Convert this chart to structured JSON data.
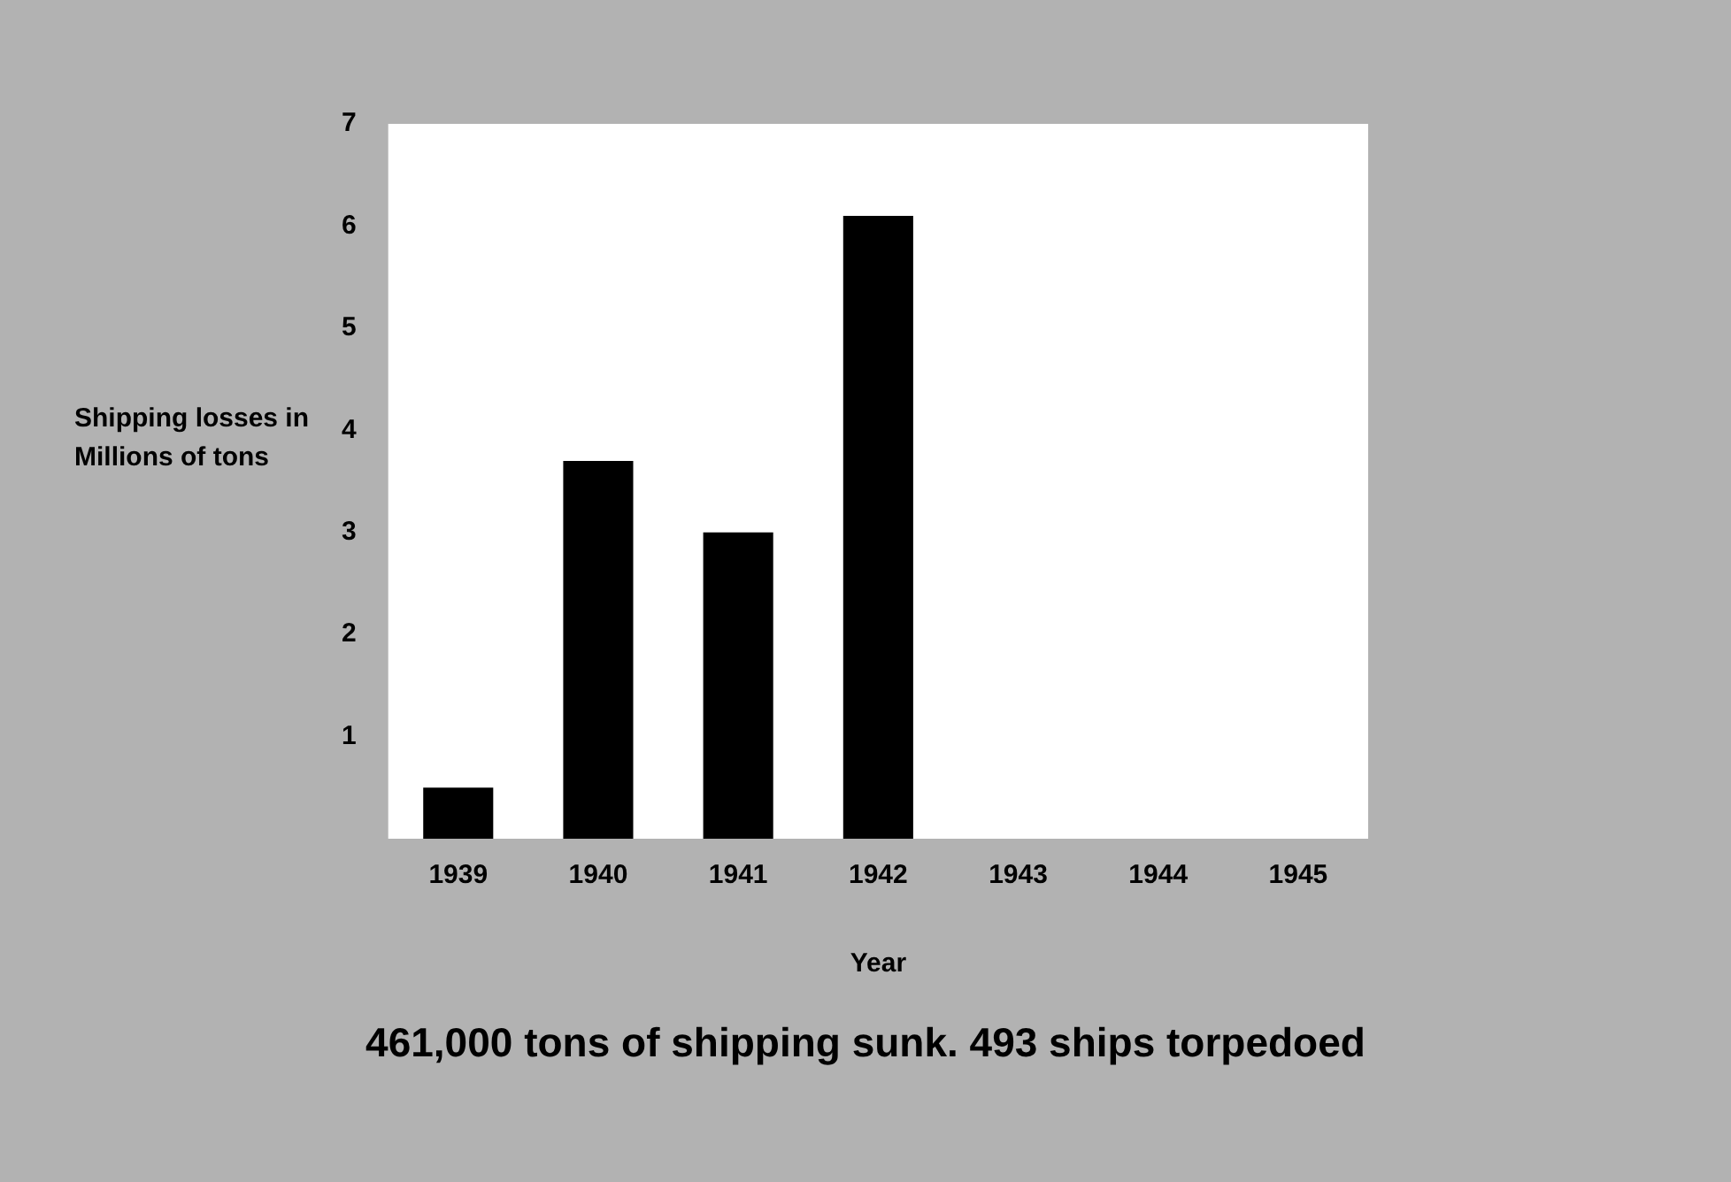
{
  "chart_data": {
    "type": "bar",
    "xlabel": "Year",
    "ylabel": "Shipping losses in Millions of tons",
    "categories": [
      "1939",
      "1940",
      "1941",
      "1942",
      "1943",
      "1944",
      "1945"
    ],
    "values": [
      0.5,
      3.7,
      3.0,
      6.1,
      null,
      null,
      null
    ],
    "color": "#000000",
    "ylim": [
      0,
      7
    ],
    "yticks": [
      1,
      2,
      3,
      4,
      5,
      6,
      7
    ],
    "grid": false,
    "legend": false,
    "annotations": [
      "461,000 tons of shipping sunk. 493 ships torpedoed"
    ]
  }
}
